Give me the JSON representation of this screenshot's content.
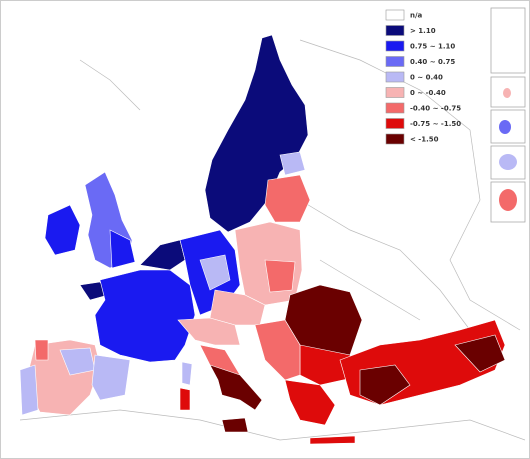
{
  "legend": {
    "items": [
      {
        "label": "n/a",
        "color": "#ffffff"
      },
      {
        "label": "> 1.10",
        "color": "#0b0b7a"
      },
      {
        "label": "0.75 ~ 1.10",
        "color": "#1a1af0"
      },
      {
        "label": "0.40 ~ 0.75",
        "color": "#6a6af5"
      },
      {
        "label": "0 ~ 0.40",
        "color": "#b9b9f5"
      },
      {
        "label": "0 ~ -0.40",
        "color": "#f7b3b3"
      },
      {
        "label": "-0.40 ~ -0.75",
        "color": "#f36a6a"
      },
      {
        "label": "-0.75 ~ -1.50",
        "color": "#de0b0b"
      },
      {
        "label": "< -1.50",
        "color": "#6a0000"
      }
    ]
  }
}
